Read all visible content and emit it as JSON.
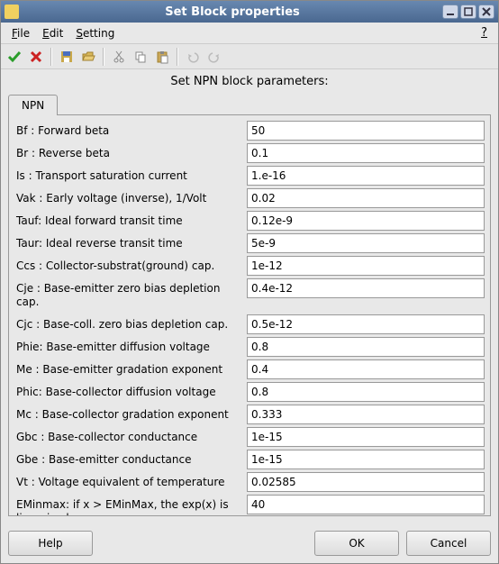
{
  "window": {
    "title": "Set Block properties"
  },
  "menubar": {
    "file": "File",
    "file_u": "F",
    "edit": "Edit",
    "edit_u": "E",
    "setting": "Setting",
    "setting_u": "S",
    "help_q": "?"
  },
  "subtitle": "Set NPN block parameters:",
  "tab": {
    "label": "NPN"
  },
  "params": [
    {
      "label": "Bf  : Forward beta",
      "value": "50"
    },
    {
      "label": "Br  : Reverse beta",
      "value": "0.1"
    },
    {
      "label": "Is  : Transport saturation current",
      "value": "1.e-16"
    },
    {
      "label": "Vak : Early voltage (inverse), 1/Volt",
      "value": "0.02"
    },
    {
      "label": "Tauf: Ideal forward transit time",
      "value": "0.12e-9"
    },
    {
      "label": "Taur: Ideal reverse transit time",
      "value": "5e-9"
    },
    {
      "label": "Ccs : Collector-substrat(ground) cap.",
      "value": "1e-12"
    },
    {
      "label": "Cje : Base-emitter zero bias depletion cap.",
      "value": "0.4e-12"
    },
    {
      "label": "Cjc : Base-coll. zero bias depletion cap.",
      "value": "0.5e-12"
    },
    {
      "label": "Phie: Base-emitter diffusion voltage",
      "value": "0.8"
    },
    {
      "label": "Me  : Base-emitter gradation exponent",
      "value": "0.4"
    },
    {
      "label": "Phic: Base-collector diffusion voltage",
      "value": "0.8"
    },
    {
      "label": "Mc  : Base-collector gradation exponent",
      "value": "0.333"
    },
    {
      "label": "Gbc : Base-collector conductance",
      "value": "1e-15"
    },
    {
      "label": "Gbe : Base-emitter conductance",
      "value": "1e-15"
    },
    {
      "label": "Vt  : Voltage equivalent of temperature",
      "value": "0.02585"
    },
    {
      "label": "EMinmax: if x > EMinMax, the exp(x) is linearized",
      "value": "40"
    }
  ],
  "buttons": {
    "help": "Help",
    "ok": "OK",
    "cancel": "Cancel"
  },
  "colors": {
    "ok_green": "#2a9d2a",
    "cancel_red": "#cc2222",
    "save_body": "#c9a84a",
    "save_flap": "#4a6ebf",
    "open_body": "#d9b85a",
    "icon_gray": "#888888"
  }
}
